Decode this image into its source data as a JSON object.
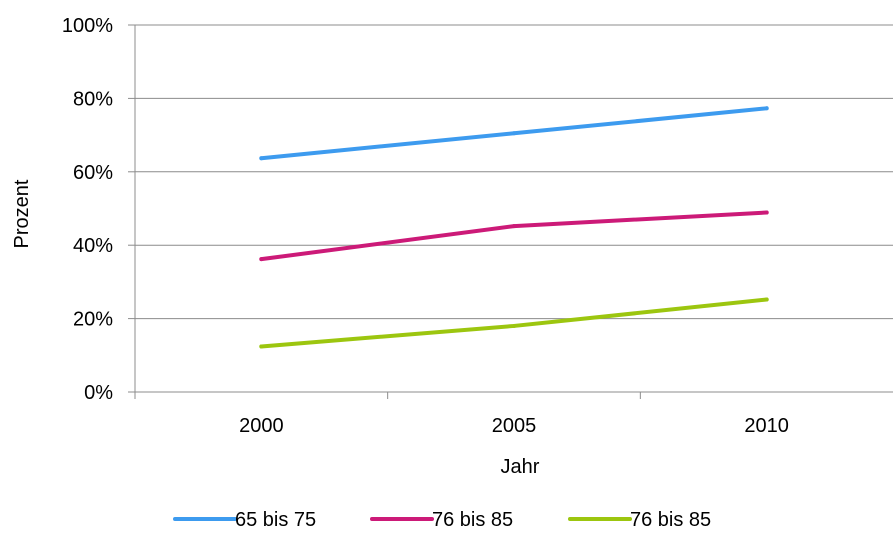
{
  "chart_data": {
    "type": "line",
    "xlabel": "Jahr",
    "ylabel": "Prozent",
    "categories": [
      "2000",
      "2005",
      "2010"
    ],
    "ylim": [
      0,
      100
    ],
    "yticks": [
      0,
      20,
      40,
      60,
      80,
      100
    ],
    "ytick_labels": [
      "0%",
      "20%",
      "40%",
      "60%",
      "80%",
      "100%"
    ],
    "grid": true,
    "legend_position": "bottom",
    "series": [
      {
        "name": "65 bis 75",
        "color": "#3d9bef",
        "values": [
          63.7,
          70.5,
          77.3
        ]
      },
      {
        "name": "76 bis 85",
        "color": "#cc1a78",
        "values": [
          36.2,
          45.2,
          48.9
        ]
      },
      {
        "name": "76 bis 85",
        "color": "#9cc60f",
        "values": [
          12.4,
          18.0,
          25.2
        ]
      }
    ]
  }
}
